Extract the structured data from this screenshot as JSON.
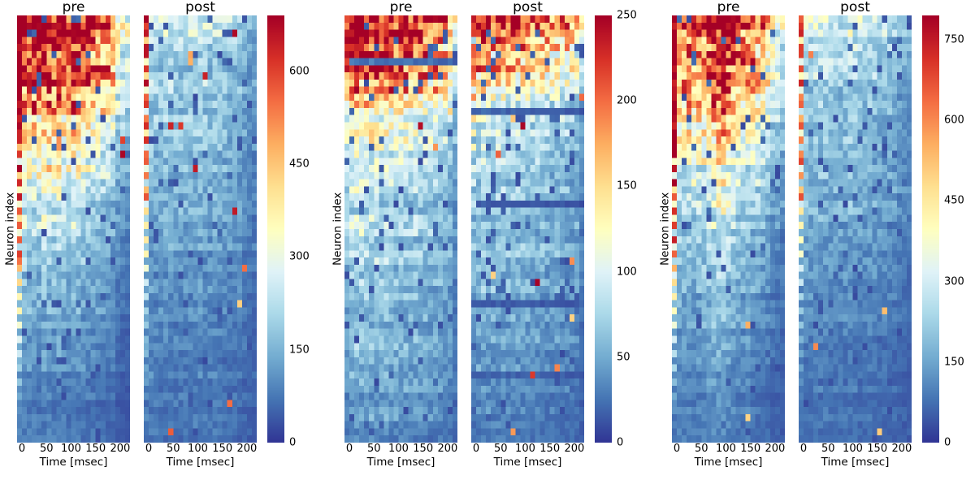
{
  "figure": {
    "background": "#ffffff",
    "text_color": "#000000"
  },
  "colormap": {
    "name": "RdYlBu_r",
    "stops": [
      [
        0.0,
        "#313695"
      ],
      [
        0.1,
        "#4575b4"
      ],
      [
        0.2,
        "#74add1"
      ],
      [
        0.3,
        "#abd9e9"
      ],
      [
        0.4,
        "#e0f3f8"
      ],
      [
        0.5,
        "#ffffbf"
      ],
      [
        0.6,
        "#fee090"
      ],
      [
        0.7,
        "#fdae61"
      ],
      [
        0.8,
        "#f46d43"
      ],
      [
        0.9,
        "#d73027"
      ],
      [
        1.0,
        "#a50026"
      ]
    ]
  },
  "chart_data": [
    {
      "type": "heatmap",
      "ylabel": "Neuron index",
      "xlabel": "Time [msec]",
      "x_ticks": [
        0,
        50,
        100,
        150,
        200
      ],
      "x_range": [
        -10,
        220
      ],
      "rows": 60,
      "cols": 23,
      "colorbar": {
        "min": 0,
        "max": 690,
        "ticks": [
          0,
          150,
          300,
          450,
          600
        ]
      },
      "pre": {
        "title": "pre",
        "seed": 101,
        "noise": 0.35,
        "row_jitter": 0.18,
        "dropout": 0.05,
        "spike_p": 0.004,
        "row_profile": [
          0.97,
          0.95,
          0.93,
          0.88,
          0.85,
          0.83,
          0.8,
          0.78,
          0.75,
          0.7,
          0.67,
          0.64,
          0.6,
          0.57,
          0.54,
          0.5,
          0.47,
          0.44,
          0.42,
          0.4,
          0.38,
          0.36,
          0.34,
          0.33,
          0.32,
          0.3,
          0.29,
          0.28,
          0.27,
          0.26,
          0.25,
          0.24,
          0.23,
          0.22,
          0.21,
          0.2,
          0.19,
          0.18,
          0.17,
          0.16,
          0.15,
          0.15,
          0.14,
          0.14,
          0.13,
          0.13,
          0.12,
          0.12,
          0.11,
          0.11,
          0.1,
          0.1,
          0.09,
          0.09,
          0.08,
          0.08,
          0.08,
          0.07,
          0.07,
          0.07
        ],
        "col_profile": [
          1.45,
          1.25,
          1.2,
          1.25,
          1.2,
          1.3,
          1.25,
          1.2,
          1.3,
          1.15,
          1.1,
          1.25,
          1.2,
          1.1,
          1.0,
          1.05,
          0.95,
          0.9,
          0.85,
          0.8,
          0.55,
          0.5,
          0.45
        ],
        "left_col_profile": [
          1,
          1,
          1,
          1,
          1,
          1,
          1,
          1,
          1,
          1,
          1,
          1,
          1,
          1,
          1,
          1,
          1,
          1,
          0.5,
          0.95,
          0.3,
          1,
          0.55,
          0.9,
          0.35,
          0.95,
          0.5,
          0.85,
          0.3,
          0.9,
          0.45,
          0.8,
          0.3,
          0.85,
          0.4,
          0.7,
          0.3,
          0.6,
          0.25,
          0.55,
          0.2,
          0.5,
          0.2,
          0.45,
          0.15,
          0.4,
          0.15,
          0.35,
          0.12,
          0.3,
          0.1,
          0.25,
          0.1,
          0.2,
          0.1,
          0.15,
          0.1,
          0.12,
          0.08,
          0.1
        ]
      },
      "post": {
        "title": "post",
        "seed": 102,
        "noise": 0.35,
        "row_jitter": 0.18,
        "dropout": 0.07,
        "spike_p": 0.012,
        "row_profile": [
          0.33,
          0.35,
          0.31,
          0.29,
          0.31,
          0.28,
          0.29,
          0.27,
          0.28,
          0.26,
          0.27,
          0.25,
          0.26,
          0.24,
          0.25,
          0.23,
          0.24,
          0.22,
          0.23,
          0.21,
          0.22,
          0.21,
          0.2,
          0.2,
          0.19,
          0.19,
          0.18,
          0.18,
          0.17,
          0.17,
          0.17,
          0.16,
          0.16,
          0.15,
          0.15,
          0.15,
          0.14,
          0.14,
          0.14,
          0.13,
          0.13,
          0.13,
          0.12,
          0.12,
          0.12,
          0.11,
          0.11,
          0.11,
          0.1,
          0.1,
          0.1,
          0.1,
          0.09,
          0.09,
          0.09,
          0.09,
          0.08,
          0.08,
          0.08,
          0.08
        ],
        "col_profile": [
          1.1,
          1.05,
          1.0,
          1.0,
          1.05,
          1.0,
          1.0,
          0.95,
          1.0,
          1.0,
          1.1,
          1.05,
          1.0,
          0.95,
          1.0,
          0.95,
          0.9,
          0.9,
          0.85,
          0.8,
          0.7,
          0.6,
          0.55
        ],
        "left_col_profile": [
          0.95,
          0.9,
          0.95,
          0.6,
          0.9,
          0.95,
          0.45,
          0.9,
          0.6,
          0.95,
          0.5,
          0.85,
          0.9,
          0.4,
          0.8,
          0.9,
          0.5,
          0.85,
          0.35,
          0.8,
          0.9,
          0.45,
          0.75,
          0.3,
          0.7,
          0.85,
          0.4,
          0.65,
          0.3,
          0.6,
          0.25,
          0.55,
          0.2,
          0.5,
          0.2,
          0.45,
          0.15,
          0.4,
          0.15,
          0.35,
          0.12,
          0.3,
          0.12,
          0.28,
          0.1,
          0.25,
          0.1,
          0.22,
          0.1,
          0.2,
          0.08,
          0.18,
          0.08,
          0.15,
          0.08,
          0.12,
          0.06,
          0.1,
          0.06,
          0.08
        ]
      }
    },
    {
      "type": "heatmap",
      "ylabel": "Neuron index",
      "xlabel": "Time [msec]",
      "x_ticks": [
        0,
        50,
        100,
        150,
        200
      ],
      "x_range": [
        -10,
        220
      ],
      "rows": 60,
      "cols": 23,
      "colorbar": {
        "min": 0,
        "max": 250,
        "ticks": [
          0,
          50,
          100,
          150,
          200,
          250
        ]
      },
      "pre": {
        "title": "pre",
        "seed": 201,
        "noise": 0.35,
        "row_jitter": 0.18,
        "dropout": 0.06,
        "spike_p": 0.005,
        "row_profile": [
          1.0,
          0.92,
          0.86,
          0.82,
          0.86,
          0.8,
          0.08,
          0.78,
          0.74,
          0.7,
          0.66,
          0.62,
          0.57,
          0.52,
          0.47,
          0.44,
          0.42,
          0.4,
          0.38,
          0.36,
          0.35,
          0.34,
          0.33,
          0.32,
          0.31,
          0.3,
          0.29,
          0.28,
          0.28,
          0.27,
          0.27,
          0.26,
          0.26,
          0.25,
          0.25,
          0.24,
          0.24,
          0.23,
          0.23,
          0.22,
          0.22,
          0.21,
          0.21,
          0.2,
          0.2,
          0.19,
          0.19,
          0.18,
          0.18,
          0.17,
          0.17,
          0.16,
          0.16,
          0.15,
          0.15,
          0.14,
          0.14,
          0.13,
          0.13,
          0.12
        ],
        "col_profile": [
          0.9,
          1.15,
          1.2,
          1.15,
          1.1,
          1.15,
          1.1,
          1.05,
          1.1,
          1.05,
          1.0,
          1.05,
          1.0,
          0.95,
          1.0,
          0.95,
          0.95,
          0.9,
          0.9,
          0.85,
          0.8,
          0.75,
          0.5
        ],
        "left_col_profile": [
          0.3,
          0.3,
          0.95,
          1,
          0.95,
          1,
          0.9,
          0.95,
          0.6,
          0.55,
          0.5,
          0.45,
          0.4,
          0,
          0,
          0,
          0.45,
          0,
          0,
          0.4,
          0,
          0,
          0,
          0.35,
          0,
          0,
          0.3,
          0,
          0,
          0,
          0.3,
          0,
          0,
          0,
          0.25,
          0,
          0,
          0,
          0,
          0.25,
          0,
          0,
          0,
          0,
          0,
          0,
          0,
          0,
          0,
          0,
          0,
          0,
          0,
          0,
          0,
          0,
          0,
          0,
          0,
          0
        ]
      },
      "post": {
        "title": "post",
        "seed": 202,
        "noise": 0.35,
        "row_jitter": 0.18,
        "dropout": 0.07,
        "spike_p": 0.012,
        "row_profile": [
          0.96,
          0.82,
          0.72,
          0.76,
          0.66,
          0.62,
          0.56,
          0.6,
          0.52,
          0.48,
          0.42,
          0.4,
          0.38,
          0.05,
          0.36,
          0.34,
          0.33,
          0.31,
          0.3,
          0.29,
          0.28,
          0.27,
          0.26,
          0.26,
          0.25,
          0.25,
          0.05,
          0.24,
          0.24,
          0.23,
          0.23,
          0.22,
          0.22,
          0.21,
          0.21,
          0.2,
          0.2,
          0.19,
          0.19,
          0.18,
          0.05,
          0.18,
          0.17,
          0.17,
          0.16,
          0.16,
          0.15,
          0.15,
          0.14,
          0.14,
          0.05,
          0.13,
          0.13,
          0.12,
          0.12,
          0.11,
          0.11,
          0.11,
          0.1,
          0.1
        ],
        "col_profile": [
          0.85,
          1.1,
          1.15,
          1.1,
          1.05,
          1.1,
          1.05,
          1.0,
          1.05,
          1.0,
          1.0,
          1.0,
          0.95,
          0.95,
          0.95,
          0.9,
          0.9,
          0.9,
          0.85,
          0.85,
          0.8,
          0.75,
          0.5
        ],
        "left_col_profile": [
          0.3,
          0.85,
          0.9,
          0.3,
          0.8,
          0.85,
          0.5,
          0.8,
          0.45,
          0.75,
          0.4,
          0.7,
          0.35,
          0,
          0.6,
          0.3,
          0.55,
          0,
          0.5,
          0.25,
          0,
          0.45,
          0,
          0.4,
          0,
          0,
          0.35,
          0,
          0,
          0.3,
          0,
          0,
          0.3,
          0,
          0,
          0,
          0.25,
          0,
          0,
          0,
          0,
          0,
          0,
          0,
          0,
          0,
          0,
          0,
          0,
          0,
          0,
          0,
          0,
          0,
          0,
          0,
          0,
          0,
          0,
          0
        ]
      }
    },
    {
      "type": "heatmap",
      "ylabel": "Neuron index",
      "xlabel": "Time [msec]",
      "x_ticks": [
        0,
        50,
        100,
        150,
        200
      ],
      "x_range": [
        -10,
        220
      ],
      "rows": 60,
      "cols": 23,
      "colorbar": {
        "min": 0,
        "max": 795,
        "ticks": [
          0,
          150,
          300,
          450,
          600,
          750
        ]
      },
      "pre": {
        "title": "pre",
        "seed": 301,
        "noise": 0.35,
        "row_jitter": 0.18,
        "dropout": 0.05,
        "spike_p": 0.004,
        "row_profile": [
          0.92,
          0.87,
          0.82,
          0.77,
          0.8,
          0.74,
          0.7,
          0.67,
          0.63,
          0.6,
          0.57,
          0.54,
          0.51,
          0.49,
          0.47,
          0.45,
          0.43,
          0.41,
          0.39,
          0.37,
          0.35,
          0.33,
          0.32,
          0.31,
          0.3,
          0.29,
          0.28,
          0.27,
          0.26,
          0.25,
          0.24,
          0.23,
          0.22,
          0.21,
          0.2,
          0.19,
          0.18,
          0.18,
          0.17,
          0.17,
          0.16,
          0.16,
          0.15,
          0.15,
          0.14,
          0.14,
          0.13,
          0.13,
          0.12,
          0.12,
          0.11,
          0.11,
          0.1,
          0.1,
          0.09,
          0.09,
          0.08,
          0.08,
          0.08,
          0.08
        ],
        "col_profile": [
          1.2,
          1.1,
          1.05,
          1.1,
          1.05,
          1.1,
          1.15,
          1.2,
          1.35,
          1.45,
          1.4,
          1.3,
          1.15,
          1.05,
          1.0,
          1.05,
          0.95,
          0.9,
          0.8,
          0.75,
          0.6,
          0.55,
          0.5
        ],
        "left_col_profile": [
          1,
          1,
          1,
          1,
          1,
          1,
          1,
          1,
          1,
          1,
          1,
          1,
          1,
          1,
          1,
          1,
          1,
          1,
          1,
          1,
          0.5,
          0.95,
          0.3,
          1,
          0.55,
          0.9,
          0.35,
          0.95,
          0.5,
          0.85,
          0.3,
          0.9,
          0.45,
          0.8,
          0.3,
          0.7,
          0.4,
          0.65,
          0.3,
          0.55,
          0.25,
          0.5,
          0.2,
          0.45,
          0.18,
          0.4,
          0.15,
          0.35,
          0.12,
          0.3,
          0.1,
          0.25,
          0.1,
          0.2,
          0.08,
          0.15,
          0.08,
          0.12,
          0.06,
          0.1
        ]
      },
      "post": {
        "title": "post",
        "seed": 302,
        "noise": 0.35,
        "row_jitter": 0.18,
        "dropout": 0.06,
        "spike_p": 0.01,
        "row_profile": [
          0.34,
          0.36,
          0.33,
          0.31,
          0.32,
          0.3,
          0.29,
          0.28,
          0.28,
          0.27,
          0.27,
          0.26,
          0.26,
          0.25,
          0.25,
          0.24,
          0.24,
          0.23,
          0.23,
          0.22,
          0.22,
          0.21,
          0.21,
          0.2,
          0.2,
          0.19,
          0.19,
          0.18,
          0.18,
          0.17,
          0.17,
          0.16,
          0.16,
          0.15,
          0.15,
          0.14,
          0.14,
          0.13,
          0.13,
          0.13,
          0.12,
          0.12,
          0.12,
          0.11,
          0.11,
          0.11,
          0.1,
          0.1,
          0.1,
          0.09,
          0.09,
          0.09,
          0.09,
          0.08,
          0.08,
          0.08,
          0.08,
          0.07,
          0.07,
          0.07
        ],
        "col_profile": [
          1.0,
          1.05,
          1.0,
          1.0,
          1.05,
          1.0,
          0.95,
          1.0,
          0.95,
          1.0,
          1.05,
          1.0,
          0.95,
          0.9,
          0.95,
          0.9,
          0.85,
          0.85,
          0.8,
          0.75,
          0.65,
          0.6,
          0.55
        ],
        "left_col_profile": [
          0.9,
          0.85,
          0.9,
          0.5,
          0.85,
          0.9,
          0.4,
          0.85,
          0.55,
          0.9,
          0.45,
          0.8,
          0.85,
          0.35,
          0.75,
          0.85,
          0.45,
          0.8,
          0.3,
          0.75,
          0.85,
          0.4,
          0.7,
          0.28,
          0.65,
          0.8,
          0.35,
          0.6,
          0.25,
          0.55,
          0.22,
          0.5,
          0.2,
          0.45,
          0.18,
          0.4,
          0.15,
          0.35,
          0.12,
          0.3,
          0.1,
          0.28,
          0.1,
          0.25,
          0.08,
          0.22,
          0.08,
          0.2,
          0.06,
          0.18,
          0.06,
          0.15,
          0.05,
          0.12,
          0.05,
          0.1,
          0.04,
          0.08,
          0.04,
          0.06
        ]
      }
    }
  ]
}
